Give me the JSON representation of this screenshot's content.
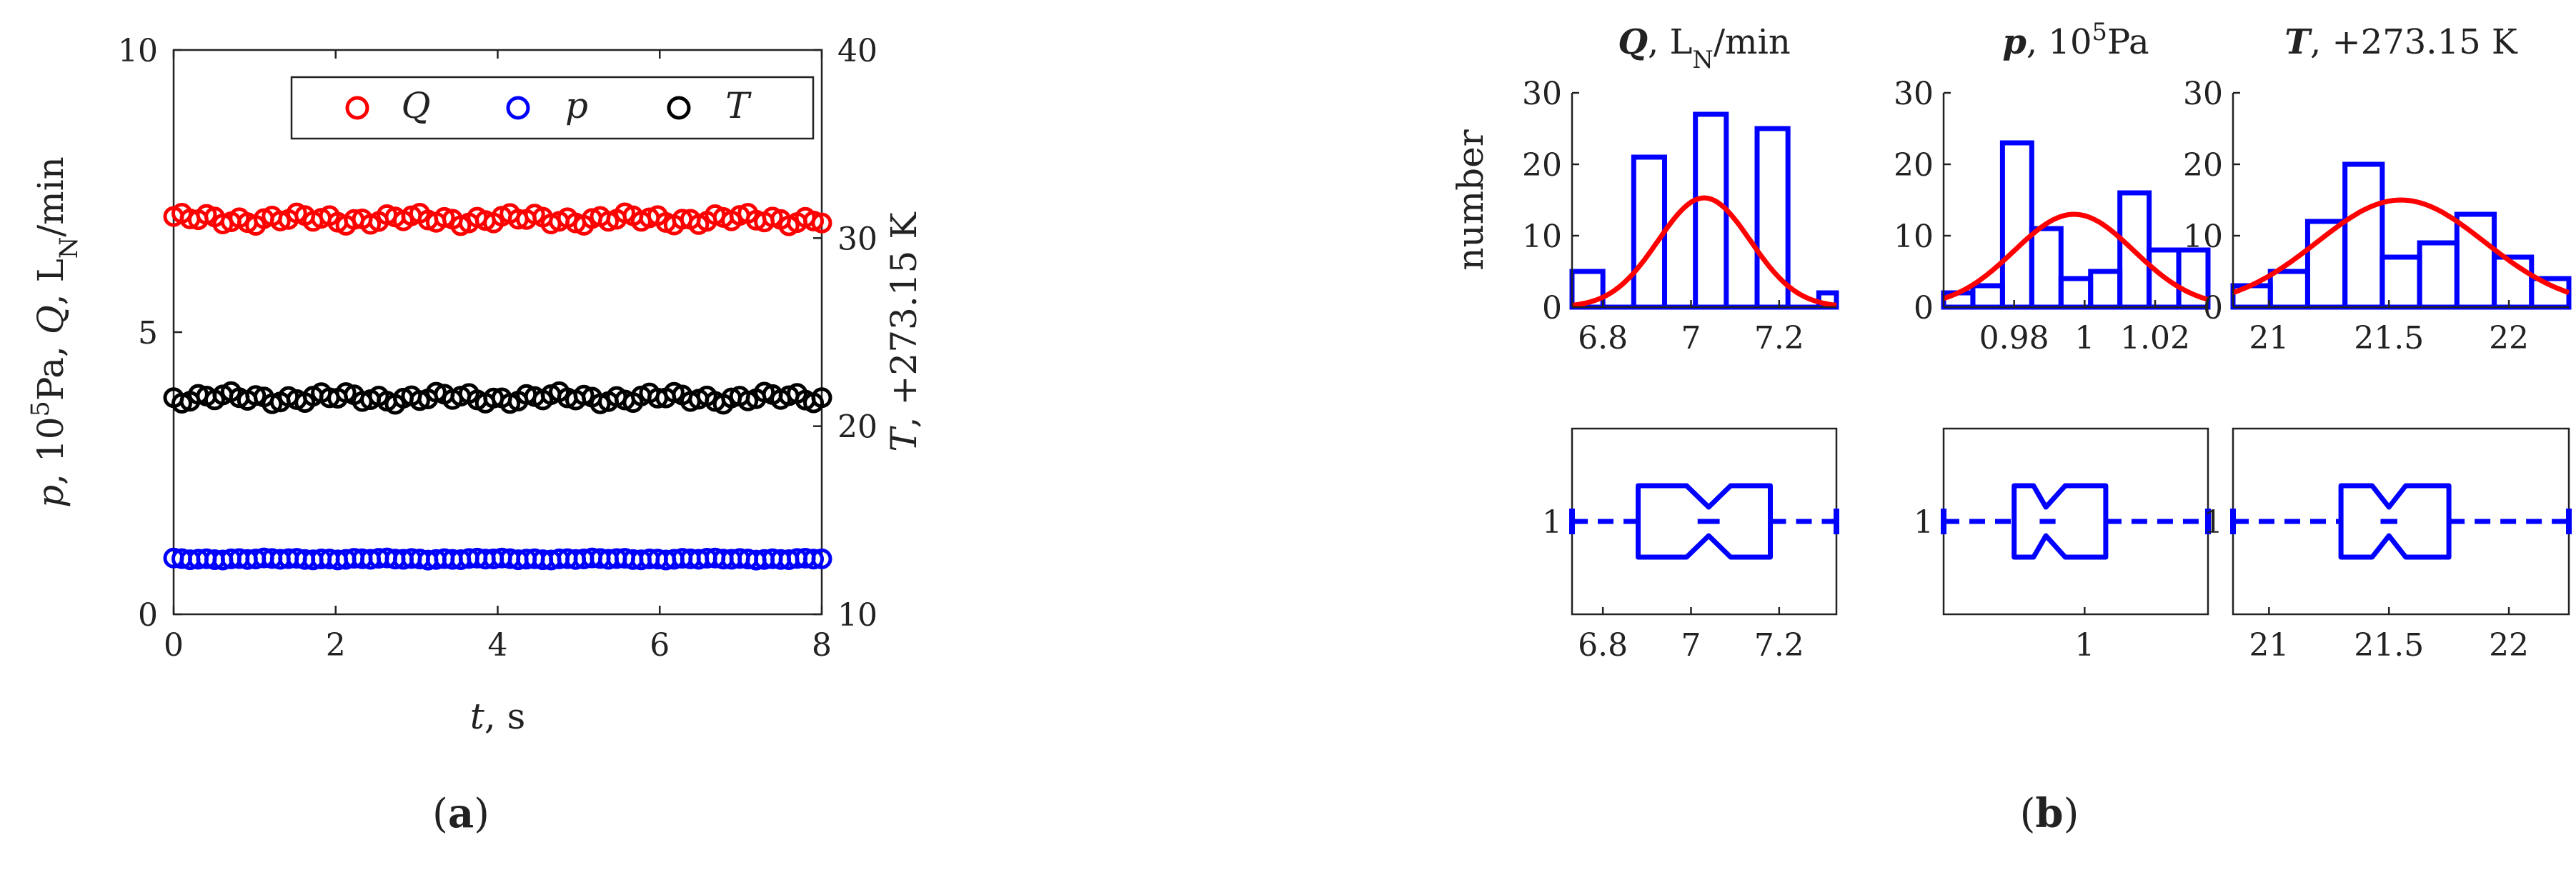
{
  "panel_labels": {
    "a": "a",
    "b": "b"
  },
  "chart_data": [
    {
      "type": "scatter",
      "panel": "a",
      "xlabel_var": "t",
      "xlabel_unit": "s",
      "ylabel_left_parts": [
        "p",
        ", 10",
        "5",
        "Pa,  ",
        "Q",
        ", L",
        "N",
        "/min"
      ],
      "ylabel_right_parts": [
        "T",
        ", +273.15 K"
      ],
      "xlim": [
        0,
        8
      ],
      "ylim_left": [
        0,
        10
      ],
      "ylim_right": [
        10,
        40
      ],
      "xticks": [
        0,
        2,
        4,
        6,
        8
      ],
      "xtick_labels": [
        "0",
        "2",
        "4",
        "6",
        "8"
      ],
      "yticks_left": [
        0,
        5,
        10
      ],
      "ytick_labels_left": [
        "0",
        "5",
        "10"
      ],
      "yticks_right": [
        10,
        20,
        30,
        40
      ],
      "ytick_labels_right": [
        "10",
        "20",
        "30",
        "40"
      ],
      "legend_position": "top-right",
      "series": [
        {
          "name": "Q",
          "axis": "left",
          "color": "#ff0000",
          "mean": 7.0,
          "spread": 0.12,
          "phase": 0.3,
          "n": 80
        },
        {
          "name": "p",
          "axis": "left",
          "color": "#0000ff",
          "mean": 0.98,
          "spread": 0.02,
          "phase": 1.1,
          "n": 80
        },
        {
          "name": "T",
          "axis": "right",
          "color": "#000000",
          "mean": 21.5,
          "spread": 0.35,
          "phase": 2.3,
          "n": 80
        }
      ]
    },
    {
      "type": "bar",
      "panel": "b",
      "subplot": "histogram-Q",
      "title_parts": [
        "Q",
        ",  L",
        "N",
        "/min"
      ],
      "ylabel": "number",
      "xlim": [
        6.73,
        7.33
      ],
      "ylim": [
        0,
        30
      ],
      "xticks": [
        6.8,
        7.0,
        7.2
      ],
      "xtick_labels": [
        "6.8",
        "7",
        "7.2"
      ],
      "yticks": [
        0,
        10,
        20,
        30
      ],
      "ytick_labels": [
        "0",
        "10",
        "20",
        "30"
      ],
      "bin_edges": [
        6.73,
        6.8,
        6.87,
        6.94,
        7.01,
        7.08,
        7.15,
        7.22,
        7.29,
        7.33
      ],
      "counts": [
        5,
        0,
        21,
        0,
        27,
        0,
        25,
        0,
        2
      ],
      "fit": {
        "mean": 7.03,
        "sd": 0.105,
        "peak": 15.3
      },
      "colors": {
        "bars": "#0000ff",
        "fit": "#ff0000"
      }
    },
    {
      "type": "bar",
      "panel": "b",
      "subplot": "histogram-p",
      "title_parts": [
        "p",
        ",  10",
        "5",
        "Pa"
      ],
      "ylabel": "",
      "xlim": [
        0.96,
        1.035
      ],
      "ylim": [
        0,
        30
      ],
      "xticks": [
        0.98,
        1.0,
        1.02
      ],
      "xtick_labels": [
        "0.98",
        "1",
        "1.02"
      ],
      "yticks": [
        0,
        10,
        20,
        30
      ],
      "ytick_labels": [
        "0",
        "10",
        "20",
        "30"
      ],
      "bin_edges": [
        0.96,
        0.9683,
        0.9767,
        0.985,
        0.9933,
        1.0017,
        1.01,
        1.0183,
        1.0267,
        1.035
      ],
      "counts": [
        2,
        3,
        23,
        11,
        4,
        5,
        16,
        8,
        8
      ],
      "fit": {
        "mean": 0.997,
        "sd": 0.017,
        "peak": 13.0
      },
      "colors": {
        "bars": "#0000ff",
        "fit": "#ff0000"
      }
    },
    {
      "type": "bar",
      "panel": "b",
      "subplot": "histogram-T",
      "title_parts": [
        "T",
        ", +273.15 K"
      ],
      "ylabel": "",
      "xlim": [
        20.85,
        22.25
      ],
      "ylim": [
        0,
        30
      ],
      "xticks": [
        21.0,
        21.5,
        22.0
      ],
      "xtick_labels": [
        "21",
        "21.5",
        "22"
      ],
      "yticks": [
        0,
        10,
        20,
        30
      ],
      "ytick_labels": [
        "0",
        "10",
        "20",
        "30"
      ],
      "bin_edges": [
        20.85,
        21.0056,
        21.1611,
        21.3167,
        21.4722,
        21.6278,
        21.7833,
        21.9389,
        22.0944,
        22.25
      ],
      "counts": [
        3,
        5,
        12,
        20,
        7,
        9,
        13,
        7,
        4
      ],
      "fit": {
        "mean": 21.55,
        "sd": 0.35,
        "peak": 15.0
      },
      "colors": {
        "bars": "#0000ff",
        "fit": "#ff0000"
      }
    },
    {
      "type": "box",
      "panel": "b",
      "subplot": "box-Q",
      "xlim": [
        6.73,
        7.33
      ],
      "xticks": [
        6.8,
        7.0,
        7.2
      ],
      "xtick_labels": [
        "6.8",
        "7",
        "7.2"
      ],
      "ytick_label": "1",
      "whisker_low": 6.73,
      "q1": 6.88,
      "notch_low": 6.99,
      "median": 7.04,
      "notch_high": 7.09,
      "q3": 7.18,
      "whisker_high": 7.33,
      "color": "#0000ff"
    },
    {
      "type": "box",
      "panel": "b",
      "subplot": "box-p",
      "xlim": [
        0.96,
        1.035
      ],
      "xticks": [
        1.0
      ],
      "xtick_labels": [
        "1"
      ],
      "ytick_label": "1",
      "whisker_low": 0.96,
      "q1": 0.98,
      "notch_low": 0.9855,
      "median": 0.989,
      "notch_high": 0.9945,
      "q3": 1.006,
      "whisker_high": 1.035,
      "color": "#0000ff"
    },
    {
      "type": "box",
      "panel": "b",
      "subplot": "box-T",
      "xlim": [
        20.85,
        22.25
      ],
      "xticks": [
        21.0,
        21.5,
        22.0
      ],
      "xtick_labels": [
        "21",
        "21.5",
        "22"
      ],
      "ytick_label": "1",
      "whisker_low": 20.85,
      "q1": 21.3,
      "notch_low": 21.43,
      "median": 21.5,
      "notch_high": 21.57,
      "q3": 21.75,
      "whisker_high": 22.25,
      "color": "#0000ff"
    }
  ]
}
